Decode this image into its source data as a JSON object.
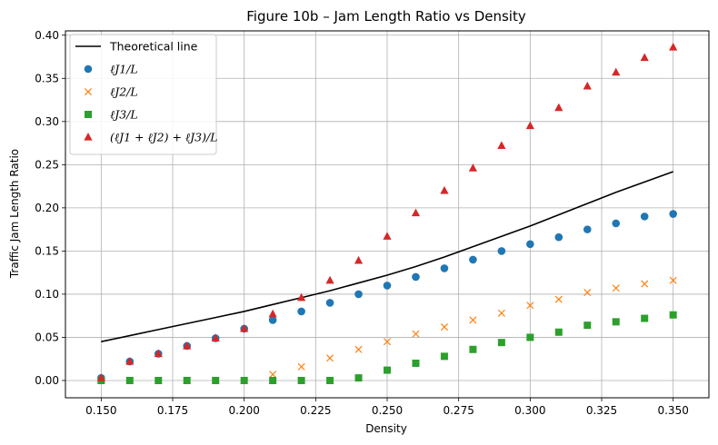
{
  "chart_data": {
    "type": "scatter",
    "title": "Figure 10b – Jam Length Ratio vs Density",
    "xlabel": "Density",
    "ylabel": "Traffic Jam Length Ratio",
    "xlim": [
      0.1375,
      0.3625
    ],
    "ylim": [
      -0.02,
      0.405
    ],
    "xticks": [
      "0.150",
      "0.175",
      "0.200",
      "0.225",
      "0.250",
      "0.275",
      "0.300",
      "0.325",
      "0.350"
    ],
    "yticks": [
      "0.00",
      "0.05",
      "0.10",
      "0.15",
      "0.20",
      "0.25",
      "0.30",
      "0.35",
      "0.40"
    ],
    "grid": true,
    "legend_position": "top-left",
    "x": [
      0.15,
      0.16,
      0.17,
      0.18,
      0.19,
      0.2,
      0.21,
      0.22,
      0.23,
      0.24,
      0.25,
      0.26,
      0.27,
      0.28,
      0.29,
      0.3,
      0.31,
      0.32,
      0.33,
      0.34,
      0.35
    ],
    "series": [
      {
        "name": "Theoretical line",
        "kind": "line",
        "color": "#000000",
        "values": [
          0.045,
          0.052,
          0.059,
          0.066,
          0.073,
          0.08,
          0.088,
          0.096,
          0.104,
          0.113,
          0.122,
          0.132,
          0.143,
          0.155,
          0.167,
          0.179,
          0.192,
          0.205,
          0.218,
          0.23,
          0.242
        ]
      },
      {
        "name": "ℓJ1/L",
        "kind": "circle",
        "color": "#1f77b4",
        "values": [
          0.003,
          0.022,
          0.031,
          0.04,
          0.049,
          0.06,
          0.07,
          0.08,
          0.09,
          0.1,
          0.11,
          0.12,
          0.13,
          0.14,
          0.15,
          0.158,
          0.166,
          0.175,
          0.182,
          0.19,
          0.193
        ]
      },
      {
        "name": "ℓJ2/L",
        "kind": "x",
        "color": "#ff7f0e",
        "values": [
          0.0,
          0.0,
          0.0,
          0.0,
          0.0,
          0.0,
          0.007,
          0.016,
          0.026,
          0.036,
          0.045,
          0.054,
          0.062,
          0.07,
          0.078,
          0.087,
          0.094,
          0.102,
          0.107,
          0.112,
          0.116
        ]
      },
      {
        "name": "ℓJ3/L",
        "kind": "square",
        "color": "#2ca02c",
        "values": [
          0.0,
          0.0,
          0.0,
          0.0,
          0.0,
          0.0,
          0.0,
          0.0,
          0.0,
          0.003,
          0.012,
          0.02,
          0.028,
          0.036,
          0.044,
          0.05,
          0.056,
          0.064,
          0.068,
          0.072,
          0.076
        ]
      },
      {
        "name": "(ℓJ1 + ℓJ2) + ℓJ3)/L",
        "kind": "triangle",
        "color": "#d62728",
        "values": [
          0.003,
          0.022,
          0.031,
          0.04,
          0.049,
          0.06,
          0.077,
          0.096,
          0.116,
          0.139,
          0.167,
          0.194,
          0.22,
          0.246,
          0.272,
          0.295,
          0.316,
          0.341,
          0.357,
          0.374,
          0.386
        ]
      }
    ]
  }
}
